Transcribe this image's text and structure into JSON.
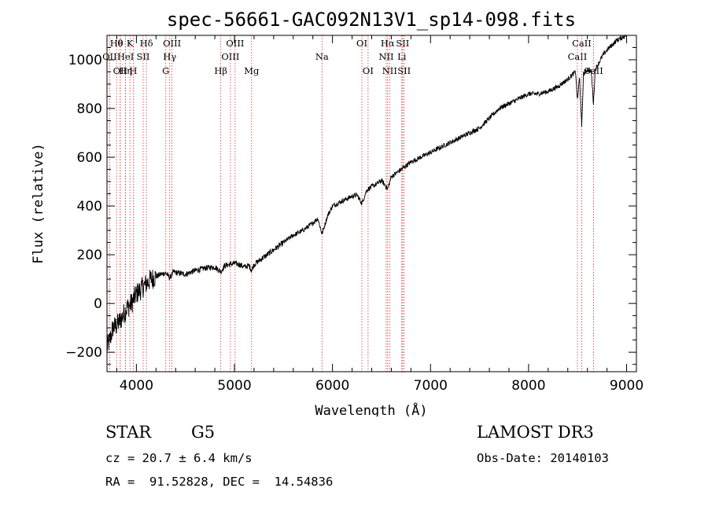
{
  "chart_data": {
    "type": "line",
    "title": "spec-56661-GAC092N13V1_sp14-098.fits",
    "xlabel": "Wavelength (Å)",
    "ylabel": "Flux (relative)",
    "xlim": [
      3700,
      9100
    ],
    "ylim": [
      -280,
      1100
    ],
    "x_ticks": [
      4000,
      5000,
      6000,
      7000,
      8000,
      9000
    ],
    "x_tick_labels": [
      "4000",
      "5000",
      "6000",
      "7000",
      "8000",
      "9000"
    ],
    "y_ticks": [
      -200,
      0,
      200,
      400,
      600,
      800,
      1000
    ],
    "y_tick_labels": [
      "−200",
      "0",
      "200",
      "400",
      "600",
      "800",
      "1000"
    ],
    "series": [
      {
        "name": "spectrum",
        "x": [
          3700,
          3730,
          3760,
          3800,
          3850,
          3900,
          3950,
          4000,
          4050,
          4100,
          4150,
          4200,
          4250,
          4300,
          4340,
          4380,
          4420,
          4500,
          4600,
          4700,
          4800,
          4861,
          4900,
          4950,
          5000,
          5050,
          5100,
          5150,
          5175,
          5200,
          5300,
          5400,
          5500,
          5600,
          5700,
          5800,
          5850,
          5893,
          5950,
          6000,
          6100,
          6200,
          6250,
          6300,
          6350,
          6400,
          6450,
          6500,
          6563,
          6600,
          6700,
          6800,
          6900,
          7000,
          7100,
          7200,
          7300,
          7400,
          7500,
          7600,
          7700,
          7800,
          7900,
          8000,
          8100,
          8200,
          8300,
          8400,
          8450,
          8480,
          8498,
          8520,
          8542,
          8560,
          8600,
          8640,
          8662,
          8680,
          8720,
          8760,
          8800,
          8850,
          8900,
          8950,
          8990
        ],
        "y": [
          -180,
          -150,
          -100,
          -90,
          -60,
          -20,
          0,
          40,
          60,
          80,
          100,
          110,
          120,
          125,
          105,
          130,
          125,
          120,
          135,
          145,
          150,
          130,
          155,
          160,
          165,
          160,
          150,
          155,
          135,
          160,
          190,
          220,
          250,
          280,
          300,
          330,
          350,
          285,
          360,
          400,
          420,
          440,
          445,
          410,
          465,
          480,
          490,
          505,
          470,
          520,
          550,
          580,
          600,
          620,
          640,
          660,
          680,
          700,
          720,
          760,
          800,
          820,
          840,
          860,
          860,
          870,
          890,
          920,
          940,
          950,
          830,
          930,
          720,
          940,
          960,
          950,
          820,
          960,
          990,
          1020,
          1040,
          1060,
          1080,
          1090,
          1100
        ]
      }
    ],
    "line_markers": [
      {
        "wavelength": 3798,
        "label": "Hθ",
        "row": 1
      },
      {
        "wavelength": 3835,
        "label": "θ",
        "row": 1
      },
      {
        "wavelength": 3727,
        "label": "OII",
        "row": 2
      },
      {
        "wavelength": 3889,
        "label": "HeI",
        "row": 2
      },
      {
        "wavelength": 3934,
        "label": "K",
        "row": 1
      },
      {
        "wavelength": 3968,
        "label": "H",
        "row": 3
      },
      {
        "wavelength": 4069,
        "label": "SII",
        "row": 2
      },
      {
        "wavelength": 4102,
        "label": "Hδ",
        "row": 1
      },
      {
        "wavelength": 3835,
        "label": "OII",
        "row": 3
      },
      {
        "wavelength": 3889,
        "label": "Hη",
        "row": 3
      },
      {
        "wavelength": 4300,
        "label": "G",
        "row": 3
      },
      {
        "wavelength": 4340,
        "label": "Hγ",
        "row": 2
      },
      {
        "wavelength": 4363,
        "label": "OIII",
        "row": 1
      },
      {
        "wavelength": 4861,
        "label": "Hβ",
        "row": 3
      },
      {
        "wavelength": 4959,
        "label": "OIII",
        "row": 2
      },
      {
        "wavelength": 5007,
        "label": "OIII",
        "row": 1
      },
      {
        "wavelength": 5175,
        "label": "Mg",
        "row": 3
      },
      {
        "wavelength": 5893,
        "label": "Na",
        "row": 2
      },
      {
        "wavelength": 6300,
        "label": "OI",
        "row": 1
      },
      {
        "wavelength": 6363,
        "label": "OI",
        "row": 3
      },
      {
        "wavelength": 6548,
        "label": "NII",
        "row": 2
      },
      {
        "wavelength": 6563,
        "label": "Hα",
        "row": 1
      },
      {
        "wavelength": 6583,
        "label": "NII",
        "row": 3
      },
      {
        "wavelength": 6707,
        "label": "Li",
        "row": 2
      },
      {
        "wavelength": 6716,
        "label": "SII",
        "row": 1
      },
      {
        "wavelength": 6731,
        "label": "SII",
        "row": 3
      },
      {
        "wavelength": 8498,
        "label": "CaII",
        "row": 2
      },
      {
        "wavelength": 8542,
        "label": "CaII",
        "row": 1
      },
      {
        "wavelength": 8662,
        "label": "CaII",
        "row": 3
      }
    ]
  },
  "info": {
    "class": "STAR",
    "subclass": "G5",
    "survey": "LAMOST DR3",
    "redshift": "cz = 20.7 ± 6.4 km/s",
    "obs_date": "Obs-Date: 20140103",
    "coords": "RA =  91.52828, DEC =  14.54836"
  },
  "colors": {
    "spectrum": "#000000",
    "marker": "#cc3333",
    "background": "#ffffff"
  }
}
